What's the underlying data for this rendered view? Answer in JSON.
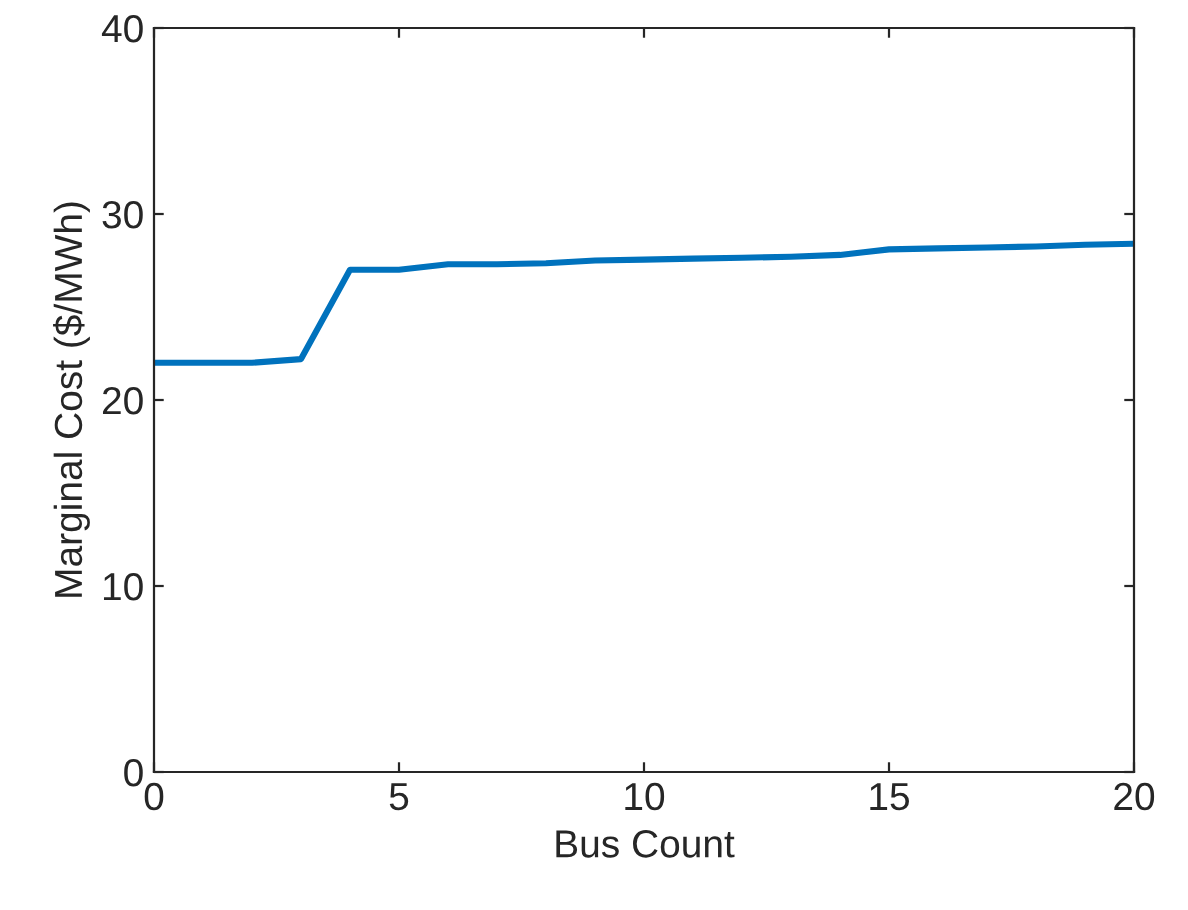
{
  "chart_data": {
    "type": "line",
    "xlabel": "Bus Count",
    "ylabel": "Marginal Cost ($/MWh)",
    "x": [
      0,
      1,
      2,
      3,
      4,
      5,
      6,
      7,
      8,
      9,
      10,
      11,
      12,
      13,
      14,
      15,
      16,
      17,
      18,
      19,
      20
    ],
    "series": [
      {
        "color": "#0072bd",
        "values": [
          22.0,
          22.0,
          22.0,
          22.2,
          27.0,
          27.0,
          27.3,
          27.3,
          27.35,
          27.5,
          27.55,
          27.6,
          27.65,
          27.7,
          27.8,
          28.1,
          28.15,
          28.2,
          28.25,
          28.35,
          28.4
        ]
      }
    ],
    "xlim": [
      0,
      20
    ],
    "xticks": [
      0,
      5,
      10,
      15,
      20
    ],
    "ylim": [
      0,
      40
    ],
    "yticks": [
      0,
      10,
      20,
      30,
      40
    ],
    "grid": false,
    "legend": false,
    "marker": "none",
    "line_style": "solid"
  }
}
